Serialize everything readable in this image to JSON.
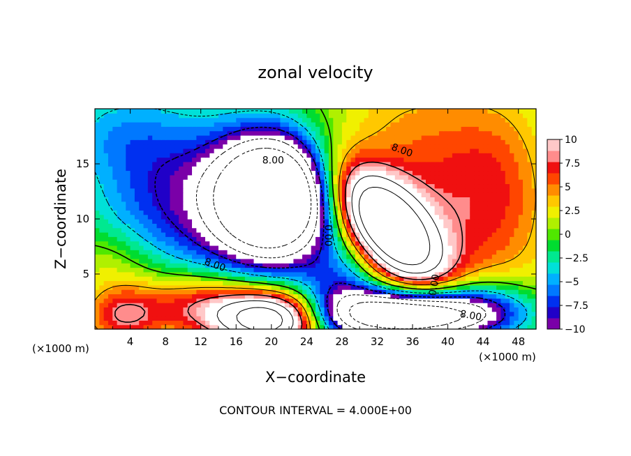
{
  "chart_data": {
    "type": "heatmap",
    "title": "zonal velocity",
    "xlabel": "X−coordinate",
    "ylabel": "Z−coordinate",
    "x_unit_left": "(×1000 m)",
    "x_unit_right": "(×1000 m)",
    "footer": "CONTOUR INTERVAL = 4.000E+00",
    "xlim": [
      0,
      50
    ],
    "ylim": [
      0,
      20
    ],
    "x_ticks": [
      4,
      8,
      12,
      16,
      20,
      24,
      28,
      32,
      36,
      40,
      44,
      48
    ],
    "x_tick_labels": [
      "4",
      "8",
      "12",
      "16",
      "20",
      "24",
      "28",
      "32",
      "36",
      "40",
      "44",
      "48"
    ],
    "y_ticks": [
      5,
      10,
      15
    ],
    "y_tick_labels": [
      "5",
      "10",
      "15"
    ],
    "colorbar": {
      "range": [
        -10,
        10
      ],
      "ticks": [
        10,
        7.5,
        5,
        2.5,
        0,
        -2.5,
        -5,
        -7.5,
        -10
      ],
      "tick_labels": [
        "10",
        "7.5",
        "5",
        "2.5",
        "0",
        "−2.5",
        "−5",
        "−7.5",
        "−10"
      ],
      "colors": [
        "#7a00a8",
        "#2000c8",
        "#0030f0",
        "#0078ff",
        "#00b0ff",
        "#00e0d8",
        "#00e890",
        "#00dc30",
        "#50e800",
        "#b0f000",
        "#f0f000",
        "#ffc800",
        "#ff8c00",
        "#ff4600",
        "#f01010",
        "#ff8c8c",
        "#ffc8c8"
      ],
      "out_of_range_color": "#ffffff"
    },
    "contour_labels": [
      "8.00",
      "8.00",
      "8.00",
      "8.00",
      "0.00",
      "0.00",
      "8.00"
    ],
    "features": [
      {
        "x": 20,
        "y": 12.2,
        "sx": 4.3,
        "sy": 3.6,
        "amp": -26
      },
      {
        "x": 19,
        "y": 9.5,
        "sx": 10,
        "sy": 6,
        "amp": -6
      },
      {
        "x": 8,
        "y": 13,
        "sx": 6,
        "sy": 5,
        "amp": -5
      },
      {
        "x": 33,
        "y": 9.5,
        "sx": 5,
        "sy": 2.5,
        "rot": -38,
        "amp": 22
      },
      {
        "x": 38,
        "y": 12,
        "sx": 9,
        "sy": 7,
        "rot": -40,
        "amp": 7
      },
      {
        "x": 46,
        "y": 14,
        "sx": 4,
        "sy": 6,
        "amp": 3
      },
      {
        "x": 20,
        "y": 0.9,
        "sx": 4.2,
        "sy": 1.8,
        "amp": 20
      },
      {
        "x": 12,
        "y": 2.2,
        "sx": 5.5,
        "sy": 2.2,
        "amp": 9
      },
      {
        "x": 3,
        "y": 1.2,
        "sx": 3,
        "sy": 1.8,
        "amp": 7
      },
      {
        "x": 2,
        "y": 6,
        "sx": 4,
        "sy": 2.2,
        "amp": 3
      },
      {
        "x": 36,
        "y": 1.3,
        "sx": 7,
        "sy": 1.6,
        "amp": -24
      },
      {
        "x": 28,
        "y": 3.5,
        "sx": 3,
        "sy": 2.5,
        "amp": -5
      },
      {
        "x": 44,
        "y": 2.5,
        "sx": 4,
        "sy": 2,
        "amp": -4
      },
      {
        "x": 2,
        "y": 18,
        "sx": 5,
        "sy": 3,
        "amp": -3
      }
    ],
    "base_value": 0
  }
}
